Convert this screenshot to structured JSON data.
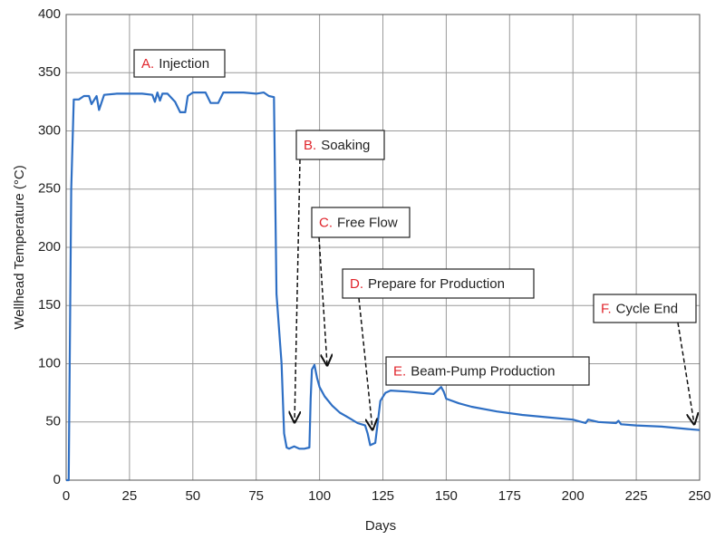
{
  "chart_data": {
    "type": "line",
    "xlabel": "Days",
    "ylabel": "Wellhead Temperature (°C)",
    "xlim": [
      0,
      250
    ],
    "xticks": [
      0,
      25,
      50,
      75,
      100,
      125,
      150,
      175,
      200,
      225,
      250
    ],
    "ylim": [
      0,
      400
    ],
    "yticks": [
      0,
      50,
      100,
      150,
      200,
      250,
      300,
      350,
      400
    ],
    "grid": true,
    "color": "#2e6fc4",
    "annotation_letter_color": "#e0242b",
    "x": [
      0,
      1,
      2,
      3,
      5,
      7,
      9,
      10,
      12,
      13,
      15,
      20,
      30,
      34,
      35,
      36,
      37,
      38,
      40,
      43,
      45,
      47,
      48,
      50,
      55,
      57,
      60,
      62,
      70,
      75,
      78,
      80,
      82,
      83,
      85,
      86,
      87,
      88,
      90,
      92,
      94,
      96,
      96.5,
      97,
      98,
      99,
      100,
      102,
      105,
      108,
      112,
      115,
      118,
      119,
      120,
      122,
      123,
      124,
      126,
      128,
      135,
      140,
      145,
      147,
      148,
      149,
      150,
      155,
      160,
      170,
      180,
      190,
      200,
      205,
      206,
      210,
      217,
      218,
      219,
      225,
      235,
      245,
      250
    ],
    "values": [
      0,
      0,
      250,
      327,
      327,
      330,
      330,
      323,
      330,
      318,
      331,
      332,
      332,
      331,
      325,
      333,
      326,
      332,
      332,
      325,
      316,
      316,
      330,
      333,
      333,
      324,
      324,
      333,
      333,
      332,
      333,
      330,
      329,
      160,
      100,
      40,
      28,
      27,
      29,
      27,
      27,
      28,
      70,
      95,
      99,
      88,
      80,
      72,
      64,
      58,
      53,
      49,
      47,
      40,
      30,
      32,
      50,
      68,
      75,
      77,
      76,
      75,
      74,
      78,
      80,
      76,
      70,
      66,
      63,
      59,
      56,
      54,
      52,
      49,
      52,
      50,
      49,
      51,
      48,
      47,
      46,
      44,
      43
    ],
    "annotations": [
      {
        "letter": "A.",
        "text": "Injection"
      },
      {
        "letter": "B.",
        "text": "Soaking"
      },
      {
        "letter": "C.",
        "text": "Free Flow"
      },
      {
        "letter": "D.",
        "text": "Prepare for Production"
      },
      {
        "letter": "E.",
        "text": "Beam-Pump Production"
      },
      {
        "letter": "F.",
        "text": "Cycle End"
      }
    ]
  }
}
